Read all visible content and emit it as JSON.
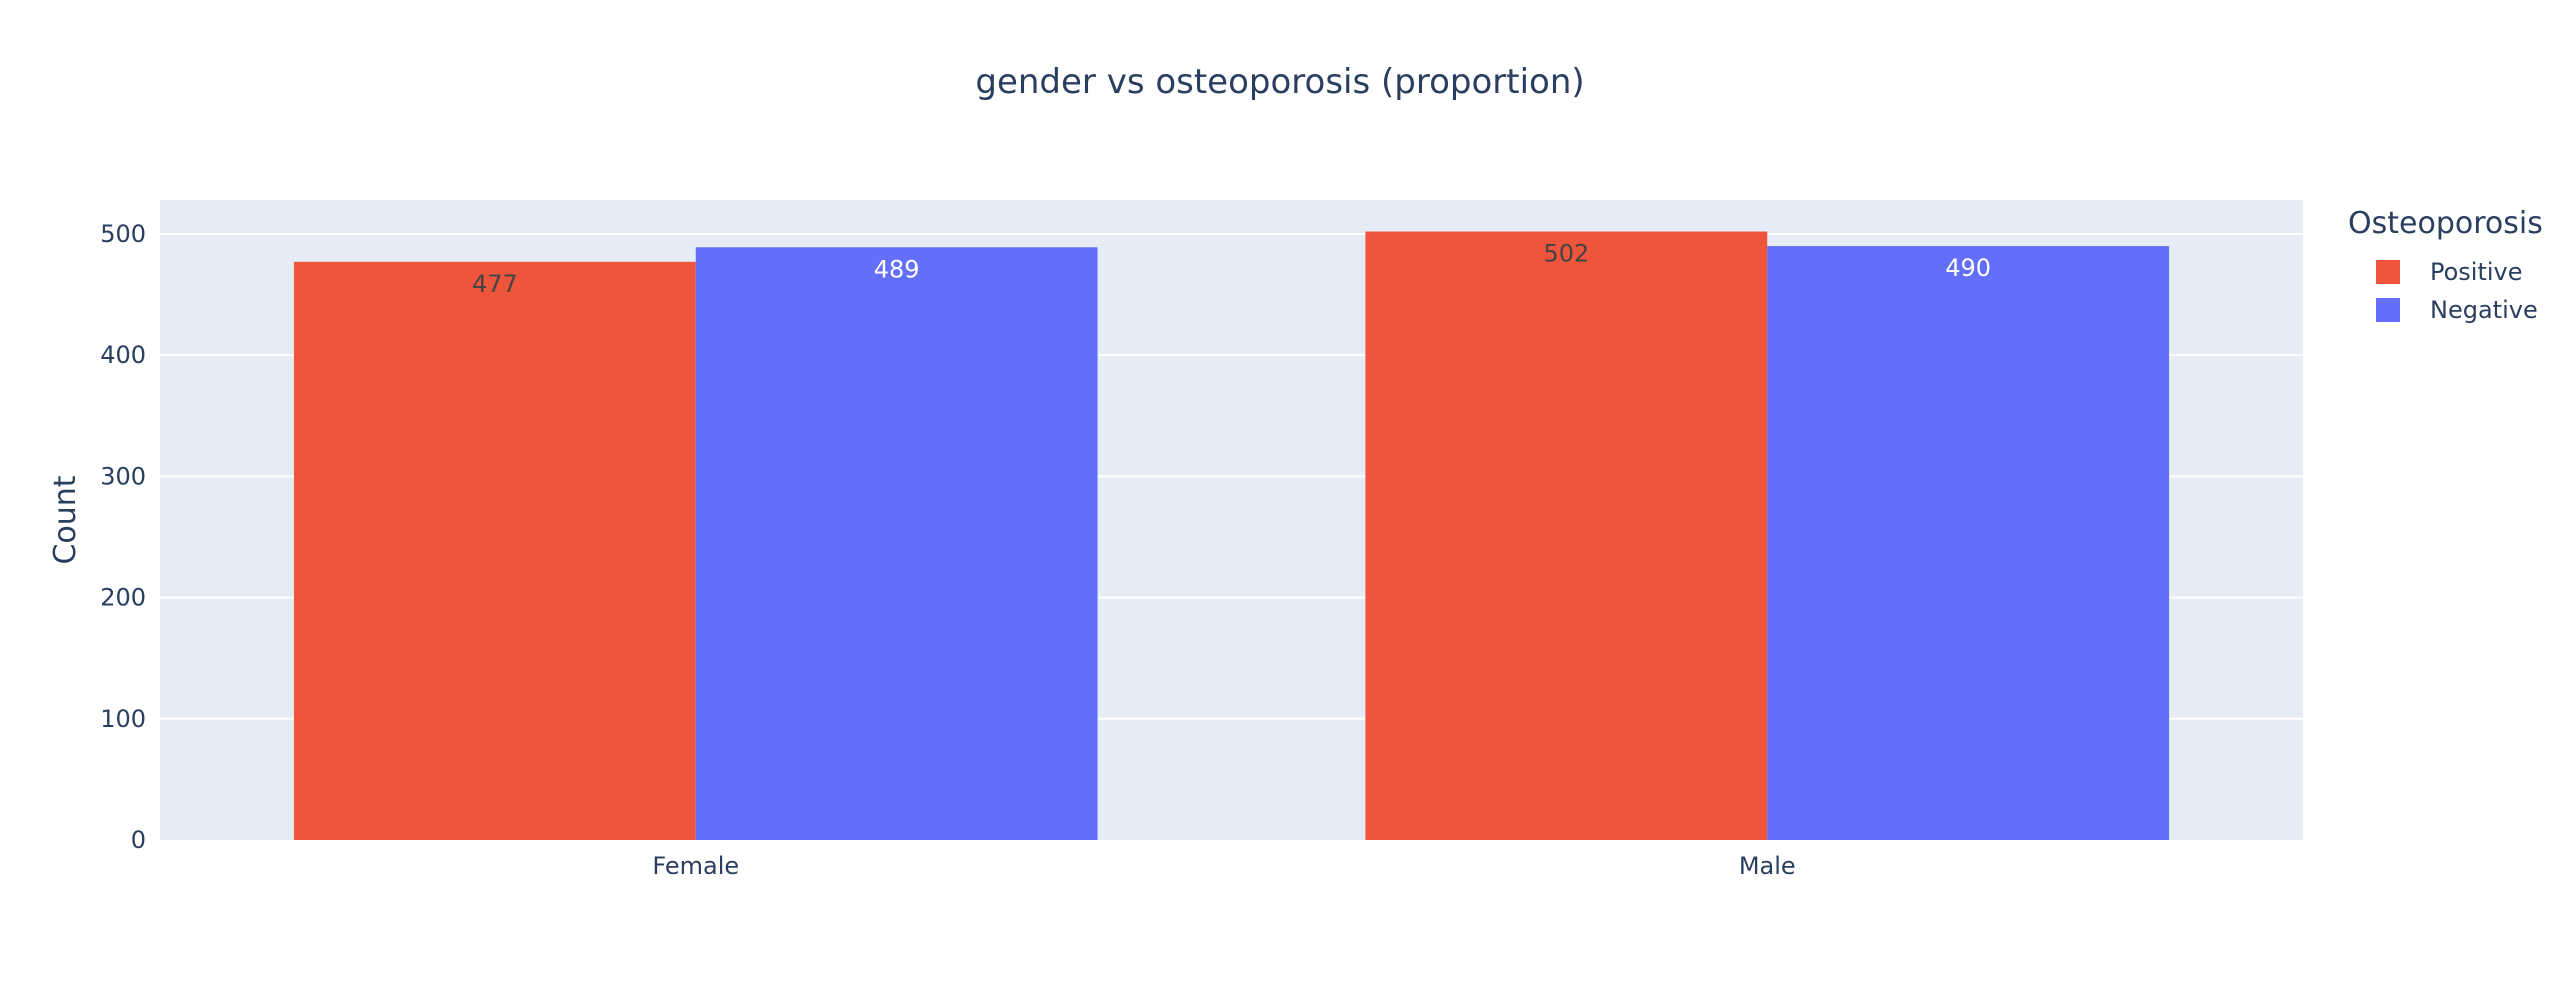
{
  "chart_data": {
    "type": "bar",
    "title": "gender vs osteoporosis (proportion)",
    "xlabel": "",
    "ylabel": "Count",
    "categories": [
      "Female",
      "Male"
    ],
    "series": [
      {
        "name": "Positive",
        "values": [
          477,
          502
        ],
        "color": "#EF553B"
      },
      {
        "name": "Negative",
        "values": [
          489,
          490
        ],
        "color": "#636EFA"
      }
    ],
    "ylim": [
      0,
      528
    ],
    "yticks": [
      0,
      100,
      200,
      300,
      400,
      500
    ],
    "legend": {
      "title": "Osteoporosis",
      "position": "top-right"
    },
    "grid": true,
    "plot_background": "#E5ECF6",
    "label_colors": [
      "#444444",
      "#ffffff"
    ]
  }
}
